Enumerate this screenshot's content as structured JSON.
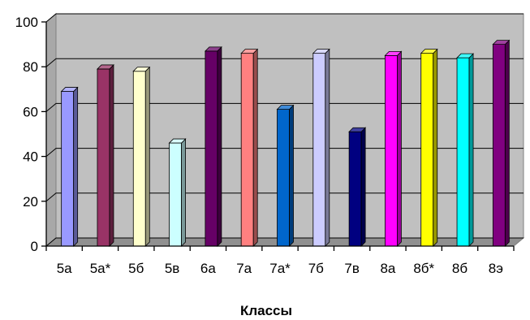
{
  "chart_data": {
    "type": "bar",
    "categories": [
      "5а",
      "5а*",
      "5б",
      "5в",
      "6а",
      "7а",
      "7а*",
      "7б",
      "7в",
      "8а",
      "8б*",
      "8б",
      "8э"
    ],
    "values": [
      69,
      79,
      78,
      46,
      87,
      86,
      61,
      86,
      51,
      85,
      86,
      84,
      90
    ],
    "colors": [
      "#9999FF",
      "#993366",
      "#FFFFCC",
      "#CCFFFF",
      "#660066",
      "#FF8080",
      "#0066CC",
      "#CCCCFF",
      "#000080",
      "#FF00FF",
      "#FFFF00",
      "#00FFFF",
      "#800080"
    ],
    "y_ticks": [
      "0",
      "20",
      "40",
      "60",
      "80",
      "100"
    ],
    "ylim": [
      0,
      100
    ],
    "xlabel": "Классы",
    "ylabel": "",
    "title": "",
    "grid": true,
    "chart_style": "3d",
    "plot_color": "#C0C0C0",
    "legend": "none"
  }
}
